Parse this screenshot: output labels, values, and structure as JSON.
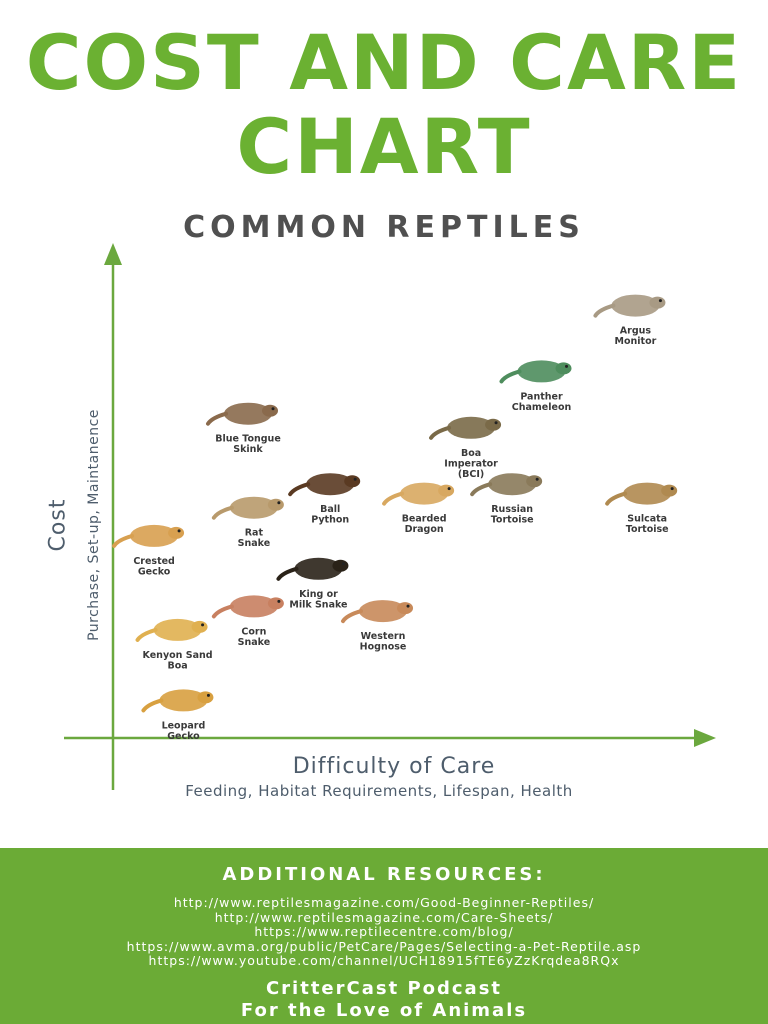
{
  "title_line1": "COST AND CARE",
  "title_line2": "CHART",
  "subtitle": "COMMON REPTILES",
  "chart_data": {
    "type": "scatter",
    "xlabel": "Difficulty of Care",
    "xlabel_sub": "Feeding, Habitat Requirements, Lifespan, Health",
    "ylabel": "Cost",
    "ylabel_sub": "Purchase, Set-up, Maintanence",
    "xlim": [
      0,
      10
    ],
    "ylim": [
      0,
      10
    ],
    "points": [
      {
        "label": "Argus Monitor",
        "x": 8.9,
        "y": 9.2,
        "color": "#a89a84"
      },
      {
        "label": "Panther Chameleon",
        "x": 7.3,
        "y": 7.8,
        "color": "#4e8d5d"
      },
      {
        "label": "Blue Tongue Skink",
        "x": 2.3,
        "y": 6.9,
        "color": "#8a6a4c"
      },
      {
        "label": "Boa Imperator (BCI)",
        "x": 6.1,
        "y": 6.6,
        "color": "#7a6a48"
      },
      {
        "label": "Ball Python",
        "x": 3.7,
        "y": 5.4,
        "color": "#5a3a22"
      },
      {
        "label": "Bearded Dragon",
        "x": 5.3,
        "y": 5.2,
        "color": "#d8a860"
      },
      {
        "label": "Russian Tortoise",
        "x": 6.8,
        "y": 5.4,
        "color": "#8a7a5a"
      },
      {
        "label": "Sulcata Tortoise",
        "x": 9.1,
        "y": 5.2,
        "color": "#b08a50"
      },
      {
        "label": "Rat Snake",
        "x": 2.4,
        "y": 4.9,
        "color": "#b89a6c"
      },
      {
        "label": "Crested Gecko",
        "x": 0.7,
        "y": 4.3,
        "color": "#d8a050"
      },
      {
        "label": "King or Milk Snake",
        "x": 3.5,
        "y": 3.6,
        "color": "#2a2218"
      },
      {
        "label": "Corn Snake",
        "x": 2.4,
        "y": 2.8,
        "color": "#c88060"
      },
      {
        "label": "Western Hognose",
        "x": 4.6,
        "y": 2.7,
        "color": "#c88a5a"
      },
      {
        "label": "Kenyon Sand Boa",
        "x": 1.1,
        "y": 2.3,
        "color": "#e0b050"
      },
      {
        "label": "Leopard Gecko",
        "x": 1.2,
        "y": 0.8,
        "color": "#d8a040"
      }
    ]
  },
  "footer": {
    "heading": "ADDITIONAL RESOURCES:",
    "links": [
      "http://www.reptilesmagazine.com/Good-Beginner-Reptiles/",
      "http://www.reptilesmagazine.com/Care-Sheets/",
      "https://www.reptilecentre.com/blog/",
      "https://www.avma.org/public/PetCare/Pages/Selecting-a-Pet-Reptile.asp",
      "https://www.youtube.com/channel/UCH18915fTE6yZzKrqdea8RQx"
    ],
    "brand_line1": "CritterCast Podcast",
    "brand_line2": "For the Love of Animals"
  },
  "colors": {
    "accent": "#6bb132",
    "axis": "#6ba83e",
    "footer_bg": "#6bab36",
    "subtitle": "#505050"
  }
}
